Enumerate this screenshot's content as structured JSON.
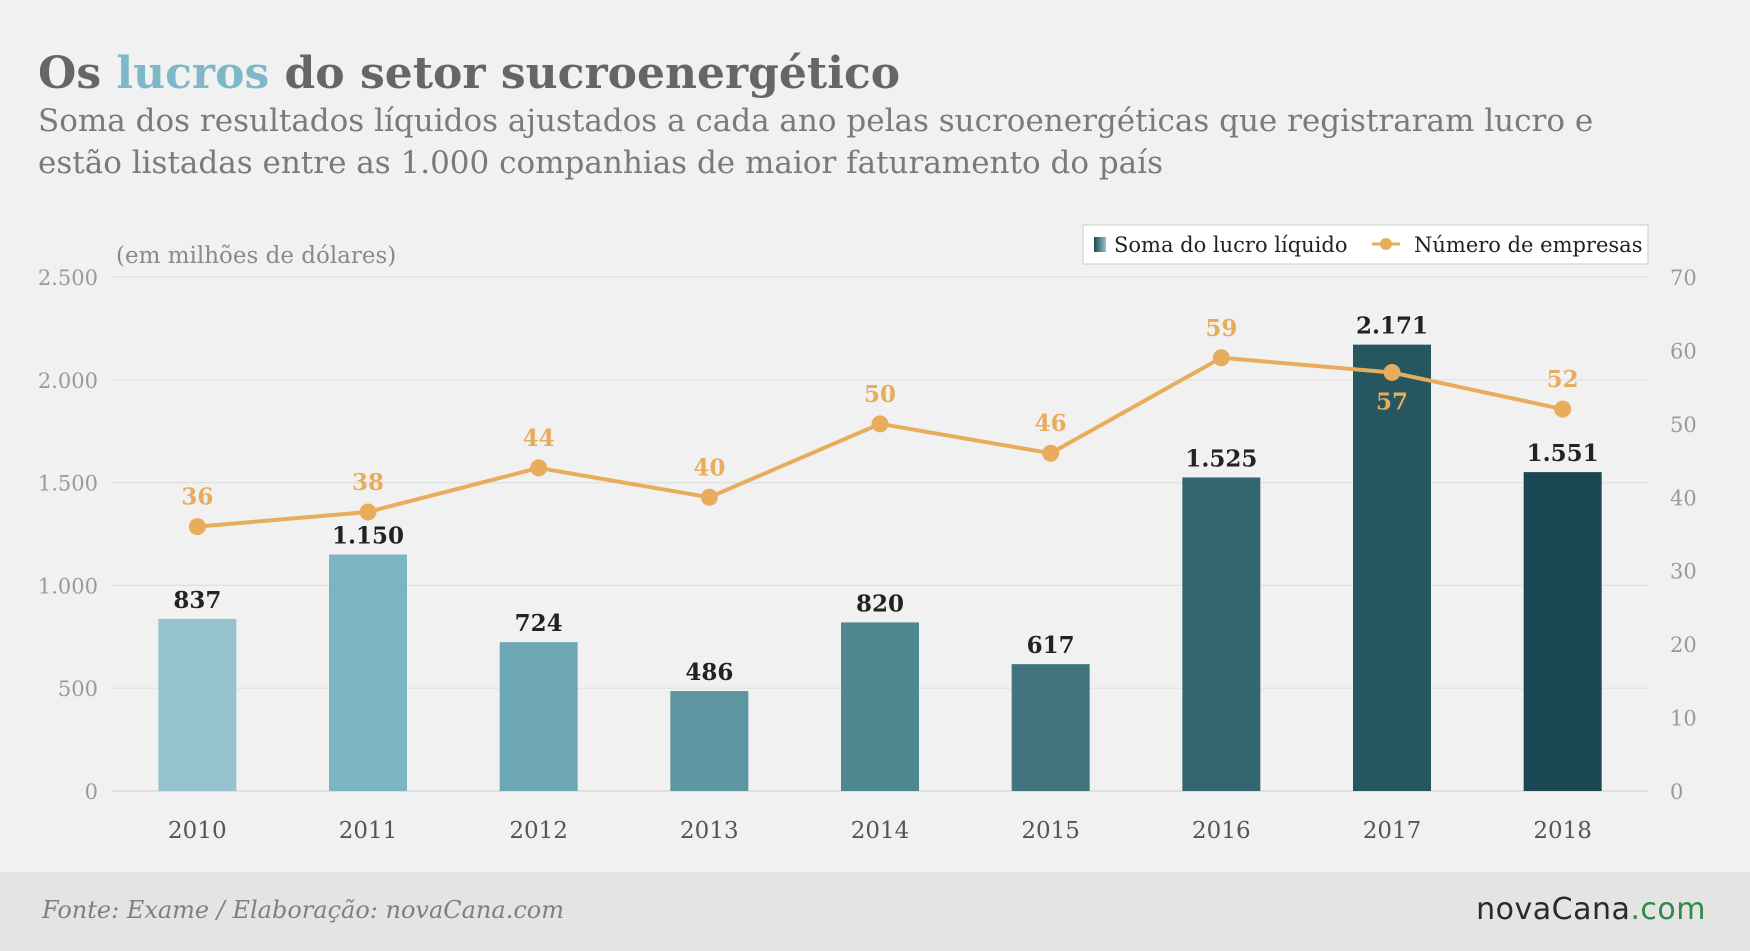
{
  "header": {
    "title_pre": "Os ",
    "title_highlight": "lucros",
    "title_post": " do setor sucroenergético",
    "subtitle": "Soma dos resultados líquidos ajustados a cada ano pelas sucroenergéticas que registraram lucro e estão listadas entre as 1.000 companhias de maior faturamento do país"
  },
  "footer": {
    "source": "Fonte: Exame / Elaboração: novaCana.com",
    "logo_main": "novaCana",
    "logo_suffix": ".com"
  },
  "colors": {
    "line": "#e8ad5c",
    "highlight": "#7eb8c8",
    "bars": [
      "#97c3d0",
      "#7bb4c3",
      "#6ea7b4",
      "#5e96a2",
      "#4f8791",
      "#41747d",
      "#336670",
      "#265761",
      "#1a4751"
    ]
  },
  "chart_data": {
    "type": "bar",
    "unit_note": "(em milhões de dólares)",
    "categories": [
      "2010",
      "2011",
      "2012",
      "2013",
      "2014",
      "2015",
      "2016",
      "2017",
      "2018"
    ],
    "series": [
      {
        "name": "Soma do lucro líquido",
        "type": "bar",
        "axis": "left",
        "values": [
          837,
          1150,
          724,
          486,
          820,
          617,
          1525,
          2171,
          1551
        ],
        "labels": [
          "837",
          "1.150",
          "724",
          "486",
          "820",
          "617",
          "1.525",
          "2.171",
          "1.551"
        ]
      },
      {
        "name": "Número de empresas",
        "type": "line",
        "axis": "right",
        "values": [
          36,
          38,
          44,
          40,
          50,
          46,
          59,
          57,
          52
        ]
      }
    ],
    "ylim": [
      0,
      2500
    ],
    "yticks": [
      0,
      500,
      1000,
      1500,
      2000,
      2500
    ],
    "ytick_labels": [
      "0",
      "500",
      "1.000",
      "1.500",
      "2.000",
      "2.500"
    ],
    "y2lim": [
      0,
      70
    ],
    "y2ticks": [
      0,
      10,
      20,
      30,
      40,
      50,
      60,
      70
    ],
    "grid": true,
    "legend": "top-right"
  }
}
